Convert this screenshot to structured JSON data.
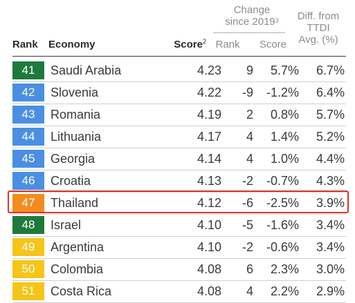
{
  "header": {
    "rank": "Rank",
    "economy": "Economy",
    "score": "Score",
    "score_sup": "2",
    "change_line1": "Change",
    "change_line2": "since 2019",
    "change_sup": "3",
    "change_rank": "Rank",
    "change_score": "Score",
    "diff_line1": "Diff. from",
    "diff_line2": "TTDI",
    "diff_line3": "Avg. (%)"
  },
  "colors": {
    "dark_green": "#1e7a3c",
    "blue": "#4a8fe2",
    "orange": "#f28c1e",
    "yellow": "#f5c518",
    "highlight_border": "#d9342b"
  },
  "rows": [
    {
      "rank": "41",
      "economy": "Saudi Arabia",
      "score": "4.23",
      "change_rank": "9",
      "change_score": "5.7%",
      "diff": "6.7%",
      "color": "#1e7a3c"
    },
    {
      "rank": "42",
      "economy": "Slovenia",
      "score": "4.22",
      "change_rank": "-9",
      "change_score": "-1.2%",
      "diff": "6.4%",
      "color": "#4a8fe2"
    },
    {
      "rank": "43",
      "economy": "Romania",
      "score": "4.19",
      "change_rank": "2",
      "change_score": "0.8%",
      "diff": "5.7%",
      "color": "#4a8fe2"
    },
    {
      "rank": "44",
      "economy": "Lithuania",
      "score": "4.17",
      "change_rank": "4",
      "change_score": "1.4%",
      "diff": "5.2%",
      "color": "#4a8fe2"
    },
    {
      "rank": "45",
      "economy": "Georgia",
      "score": "4.14",
      "change_rank": "4",
      "change_score": "1.0%",
      "diff": "4.4%",
      "color": "#4a8fe2"
    },
    {
      "rank": "46",
      "economy": "Croatia",
      "score": "4.13",
      "change_rank": "-2",
      "change_score": "-0.7%",
      "diff": "4.3%",
      "color": "#4a8fe2"
    },
    {
      "rank": "47",
      "economy": "Thailand",
      "score": "4.12",
      "change_rank": "-6",
      "change_score": "-2.5%",
      "diff": "3.9%",
      "color": "#f28c1e",
      "highlighted": true
    },
    {
      "rank": "48",
      "economy": "Israel",
      "score": "4.10",
      "change_rank": "-5",
      "change_score": "-1.6%",
      "diff": "3.4%",
      "color": "#1e7a3c"
    },
    {
      "rank": "49",
      "economy": "Argentina",
      "score": "4.10",
      "change_rank": "-2",
      "change_score": "-0.6%",
      "diff": "3.4%",
      "color": "#f5c518"
    },
    {
      "rank": "50",
      "economy": "Colombia",
      "score": "4.08",
      "change_rank": "6",
      "change_score": "2.3%",
      "diff": "3.0%",
      "color": "#f5c518"
    },
    {
      "rank": "51",
      "economy": "Costa Rica",
      "score": "4.08",
      "change_rank": "4",
      "change_score": "2.2%",
      "diff": "2.9%",
      "color": "#f5c518"
    }
  ]
}
